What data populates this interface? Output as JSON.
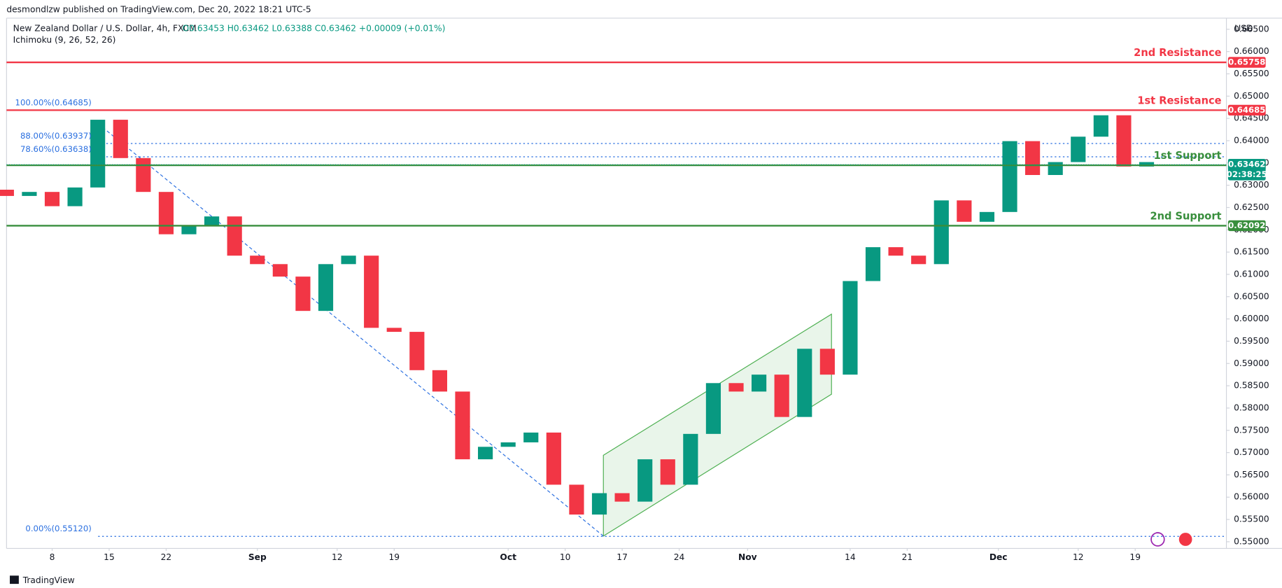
{
  "header": {
    "published": "desmondlzw published on TradingView.com, Dec 20, 2022 18:21 UTC-5",
    "symbol": "New Zealand Dollar / U.S. Dollar, 4h, FXCM",
    "ohlc": "O0.63453 H0.63462 L0.63388 C0.63462 +0.00009 (+0.01%)",
    "indicator": "Ichimoku (9, 26, 52, 26)"
  },
  "footer": "TradingView",
  "chart_data": {
    "type": "candlestick",
    "currency": "USD",
    "x": [
      -4,
      -2,
      0,
      2,
      4,
      6,
      8,
      10,
      12,
      14,
      16,
      18,
      20,
      22,
      24,
      26,
      28,
      30,
      32,
      34,
      36,
      38,
      40,
      42,
      44,
      46,
      48,
      50,
      52,
      54,
      56,
      58,
      60,
      62,
      64,
      66,
      68,
      70,
      72,
      74,
      76,
      78,
      80,
      82,
      84,
      86,
      88,
      90,
      92,
      94,
      96,
      97
    ],
    "open": [
      0.629,
      0.6276,
      0.6285,
      0.6253,
      0.6295,
      0.6447,
      0.6361,
      0.6285,
      0.619,
      0.6209,
      0.623,
      0.6142,
      0.6123,
      0.6095,
      0.6018,
      0.6123,
      0.6142,
      0.598,
      0.5971,
      0.5885,
      0.5837,
      0.5685,
      0.5713,
      0.5723,
      0.5745,
      0.5628,
      0.5561,
      0.5609,
      0.559,
      0.5685,
      0.5628,
      0.5742,
      0.5856,
      0.5837,
      0.5875,
      0.578,
      0.5933,
      0.5875,
      0.6085,
      0.6161,
      0.6142,
      0.6123,
      0.6266,
      0.6218,
      0.624,
      0.6399,
      0.6323,
      0.6352,
      0.6409,
      0.6457,
      0.6342,
      0.63453
    ],
    "close": [
      0.6276,
      0.6285,
      0.6253,
      0.6295,
      0.6447,
      0.6361,
      0.6285,
      0.619,
      0.6209,
      0.623,
      0.6142,
      0.6123,
      0.6095,
      0.6018,
      0.6123,
      0.6142,
      0.598,
      0.5971,
      0.5885,
      0.5837,
      0.5685,
      0.5713,
      0.5723,
      0.5745,
      0.5628,
      0.5561,
      0.5609,
      0.559,
      0.5685,
      0.5628,
      0.5742,
      0.5856,
      0.5837,
      0.5875,
      0.578,
      0.5933,
      0.5875,
      0.6085,
      0.6161,
      0.6142,
      0.6123,
      0.6266,
      0.6218,
      0.624,
      0.6399,
      0.6323,
      0.6352,
      0.6409,
      0.6457,
      0.6342,
      0.6352,
      0.63462
    ],
    "up_color": "#089981",
    "down_color": "#f23645",
    "xlim": [
      -4,
      103
    ],
    "xticks": [
      {
        "value": 0,
        "label": "8"
      },
      {
        "value": 5,
        "label": "15"
      },
      {
        "value": 10,
        "label": "22"
      },
      {
        "value": 18,
        "label": "Sep"
      },
      {
        "value": 25,
        "label": "12"
      },
      {
        "value": 30,
        "label": "19"
      },
      {
        "value": 40,
        "label": "Oct"
      },
      {
        "value": 45,
        "label": "10"
      },
      {
        "value": 50,
        "label": "17"
      },
      {
        "value": 55,
        "label": "24"
      },
      {
        "value": 61,
        "label": "Nov"
      },
      {
        "value": 70,
        "label": "14"
      },
      {
        "value": 75,
        "label": "21"
      },
      {
        "value": 83,
        "label": "Dec"
      },
      {
        "value": 90,
        "label": "12"
      },
      {
        "value": 95,
        "label": "19"
      }
    ],
    "ylim": [
      0.5485,
      0.6675
    ],
    "yticks": [
      {
        "value": 0.55,
        "label": "0.55000"
      },
      {
        "value": 0.555,
        "label": "0.55500"
      },
      {
        "value": 0.56,
        "label": "0.56000"
      },
      {
        "value": 0.565,
        "label": "0.56500"
      },
      {
        "value": 0.57,
        "label": "0.57000"
      },
      {
        "value": 0.575,
        "label": "0.57500"
      },
      {
        "value": 0.58,
        "label": "0.58000"
      },
      {
        "value": 0.585,
        "label": "0.58500"
      },
      {
        "value": 0.59,
        "label": "0.59000"
      },
      {
        "value": 0.595,
        "label": "0.59500"
      },
      {
        "value": 0.6,
        "label": "0.60000"
      },
      {
        "value": 0.605,
        "label": "0.60500"
      },
      {
        "value": 0.61,
        "label": "0.61000"
      },
      {
        "value": 0.615,
        "label": "0.61500"
      },
      {
        "value": 0.62,
        "label": "0.62000"
      },
      {
        "value": 0.625,
        "label": "0.62500"
      },
      {
        "value": 0.63,
        "label": "0.63000"
      },
      {
        "value": 0.635,
        "label": "0.63500"
      },
      {
        "value": 0.64,
        "label": "0.64000"
      },
      {
        "value": 0.645,
        "label": "0.64500"
      },
      {
        "value": 0.65,
        "label": "0.65000"
      },
      {
        "value": 0.655,
        "label": "0.65500"
      },
      {
        "value": 0.66,
        "label": "0.66000"
      },
      {
        "value": 0.665,
        "label": "0.66500"
      }
    ],
    "levels": [
      {
        "name": "2nd Resistance",
        "value": 0.65758,
        "color": "#f23645"
      },
      {
        "name": "1st Resistance",
        "value": 0.64685,
        "color": "#f23645"
      },
      {
        "name": "1st Support",
        "value": 0.63448,
        "color": "#388e3c"
      },
      {
        "name": "2nd Support",
        "value": 0.62092,
        "color": "#388e3c"
      }
    ],
    "fib": [
      {
        "label": "100.00%(0.64685)",
        "value": 0.64685
      },
      {
        "label": "88.00%(0.63937)",
        "value": 0.63937
      },
      {
        "label": "78.60%(0.63638)",
        "value": 0.63638
      },
      {
        "label": "0.00%(0.55120)",
        "value": 0.5512
      }
    ],
    "fib_color": "#2a6fe0",
    "last_price": 0.63462,
    "countdown": "02:38:25",
    "last_color": "#089981"
  }
}
